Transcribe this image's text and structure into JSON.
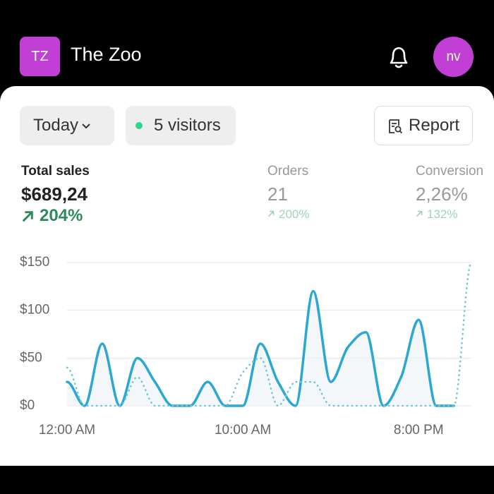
{
  "header": {
    "logo": "TZ",
    "title": "The Zoo",
    "avatar": "nv"
  },
  "toolbar": {
    "period": "Today",
    "visitors": "5 visitors",
    "report": "Report"
  },
  "metrics": [
    {
      "label": "Total sales",
      "value": "$689,24",
      "change": "204%"
    },
    {
      "label": "Orders",
      "value": "21",
      "change": "200%"
    },
    {
      "label": "Conversion",
      "value": "2,26%",
      "change": "132%"
    }
  ],
  "chart_data": {
    "type": "line",
    "categories": [
      "12:00 AM",
      null,
      null,
      null,
      null,
      null,
      null,
      null,
      null,
      null,
      "10:00 AM",
      null,
      null,
      null,
      null,
      null,
      null,
      null,
      null,
      null,
      "8:00 PM",
      null,
      null,
      null
    ],
    "series": [
      {
        "color": "#2ba7d4",
        "style": "solid",
        "values": [
          25,
          0,
          65,
          0,
          50,
          25,
          0,
          0,
          25,
          0,
          0,
          65,
          25,
          0,
          120,
          25,
          62,
          77,
          0,
          30,
          90,
          0,
          0,
          null
        ]
      },
      {
        "color": "#6fc7d6",
        "style": "dotted",
        "values": [
          40,
          0,
          0,
          0,
          30,
          0,
          0,
          0,
          0,
          0,
          35,
          50,
          0,
          25,
          25,
          0,
          0,
          0,
          0,
          0,
          0,
          0,
          0,
          150
        ]
      }
    ],
    "ylim": [
      0,
      150
    ],
    "yticks": [
      {
        "value": 0,
        "label": "$0"
      },
      {
        "value": 50,
        "label": "$50"
      },
      {
        "value": 100,
        "label": "$100"
      },
      {
        "value": 150,
        "label": "$150"
      }
    ],
    "grid": true
  }
}
